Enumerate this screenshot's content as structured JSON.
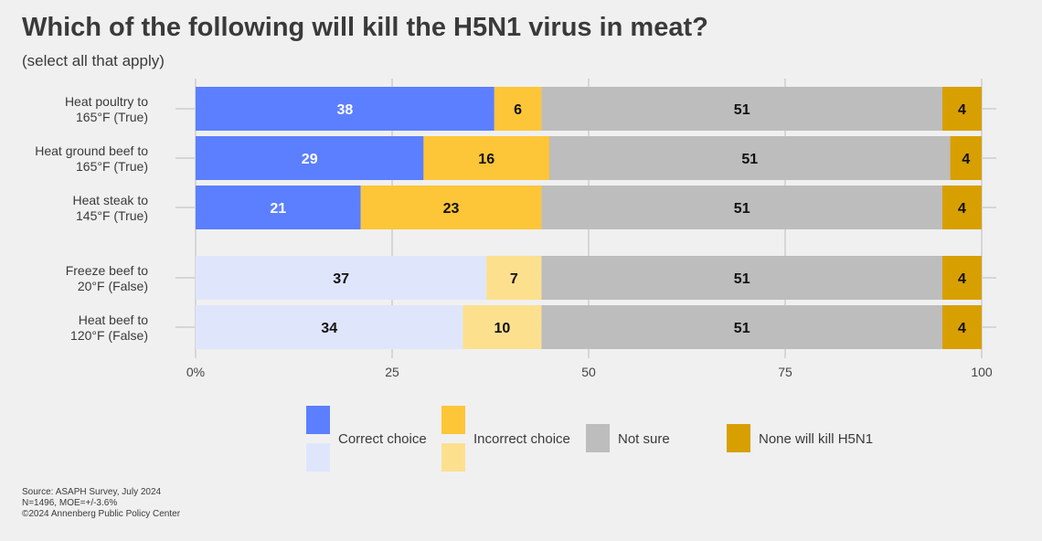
{
  "title": "Which of the following will kill the H5N1 virus in meat?",
  "subtitle": "(select all that apply)",
  "footer": {
    "source": "Source: ASAPH Survey, July 2024",
    "sample": "N=1496, MOE=+/-3.6%",
    "copyright": "©2024 Annenberg Public Policy Center"
  },
  "chart_data": {
    "type": "bar",
    "orientation": "horizontal-stacked",
    "categories": [
      [
        "Heat poultry to",
        "165°F (True)"
      ],
      [
        "Heat ground beef to",
        "165°F (True)"
      ],
      [
        "Heat steak to",
        "145°F (True)"
      ],
      [
        "Freeze beef to",
        "20°F (False)"
      ],
      [
        "Heat beef to",
        "120°F (False)"
      ]
    ],
    "statements_true": [
      true,
      true,
      true,
      false,
      false
    ],
    "series": [
      {
        "name": "Correct choice",
        "values": [
          38,
          29,
          21,
          37,
          34
        ]
      },
      {
        "name": "Incorrect choice",
        "values": [
          6,
          16,
          23,
          7,
          10
        ]
      },
      {
        "name": "Not sure",
        "values": [
          51,
          51,
          51,
          51,
          51
        ]
      },
      {
        "name": "None will kill H5N1",
        "values": [
          4,
          4,
          4,
          4,
          4
        ]
      }
    ],
    "xlim": [
      0,
      100
    ],
    "xticks": [
      "0%",
      "25",
      "50",
      "75",
      "100"
    ],
    "grid": true,
    "legend_position": "bottom",
    "colors": {
      "correct_true": "#5b7fff",
      "correct_false": "#dfe6fb",
      "incorrect_true": "#fdc538",
      "incorrect_false": "#fde08e",
      "not_sure": "#bdbdbd",
      "none": "#d89f00",
      "grid": "#d6d6d6",
      "text_dark": "#111111",
      "text_light": "#ffffff",
      "axis_text": "#444444"
    }
  }
}
